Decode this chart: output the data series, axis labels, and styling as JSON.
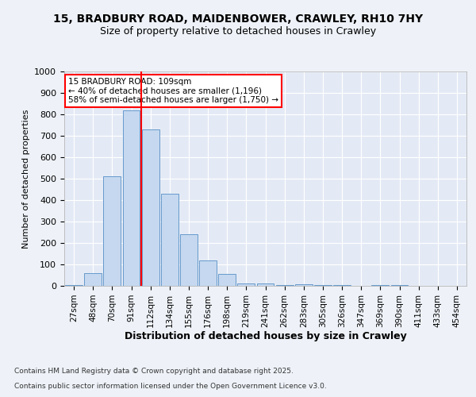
{
  "title_line1": "15, BRADBURY ROAD, MAIDENBOWER, CRAWLEY, RH10 7HY",
  "title_line2": "Size of property relative to detached houses in Crawley",
  "xlabel": "Distribution of detached houses by size in Crawley",
  "ylabel": "Number of detached properties",
  "categories": [
    "27sqm",
    "48sqm",
    "70sqm",
    "91sqm",
    "112sqm",
    "134sqm",
    "155sqm",
    "176sqm",
    "198sqm",
    "219sqm",
    "241sqm",
    "262sqm",
    "283sqm",
    "305sqm",
    "326sqm",
    "347sqm",
    "369sqm",
    "390sqm",
    "411sqm",
    "433sqm",
    "454sqm"
  ],
  "values": [
    5,
    60,
    510,
    820,
    730,
    430,
    240,
    120,
    55,
    12,
    10,
    5,
    8,
    5,
    3,
    1,
    5,
    2,
    1,
    0,
    0
  ],
  "bar_color": "#c5d8ef",
  "bar_edge_color": "#6699cc",
  "ylim": [
    0,
    1000
  ],
  "yticks": [
    0,
    100,
    200,
    300,
    400,
    500,
    600,
    700,
    800,
    900,
    1000
  ],
  "red_line_x": 3.5,
  "annotation_text": "15 BRADBURY ROAD: 109sqm\n← 40% of detached houses are smaller (1,196)\n58% of semi-detached houses are larger (1,750) →",
  "footer_line1": "Contains HM Land Registry data © Crown copyright and database right 2025.",
  "footer_line2": "Contains public sector information licensed under the Open Government Licence v3.0.",
  "background_color": "#eef2f8",
  "plot_bg_color": "#e4eaf5",
  "grid_color": "#ffffff"
}
